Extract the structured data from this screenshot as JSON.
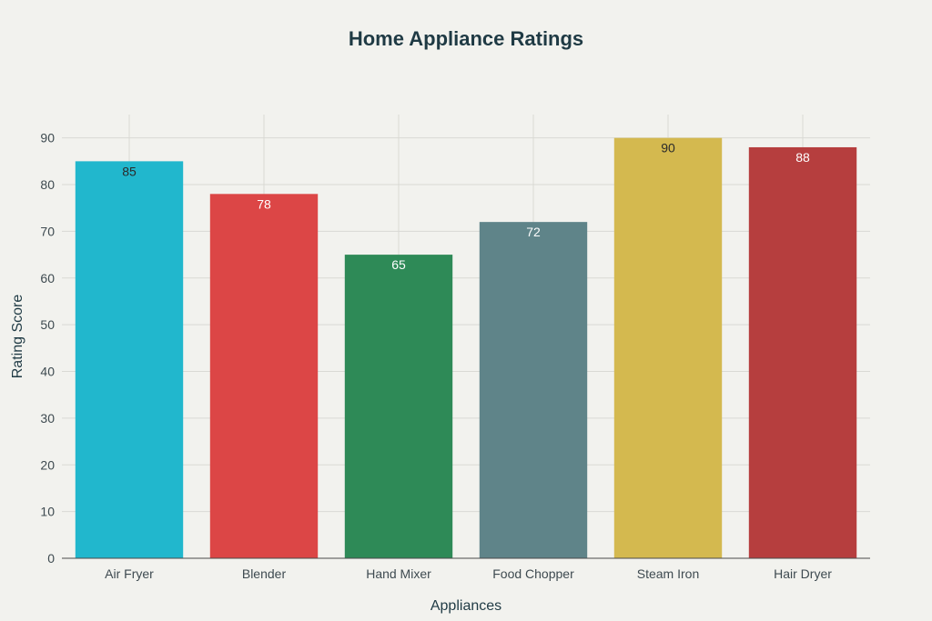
{
  "chart_data": {
    "type": "bar",
    "title": "Home Appliance Ratings",
    "xlabel": "Appliances",
    "ylabel": "Rating Score",
    "categories": [
      "Air Fryer",
      "Blender",
      "Hand Mixer",
      "Food Chopper",
      "Steam Iron",
      "Hair Dryer"
    ],
    "values": [
      85,
      78,
      65,
      72,
      90,
      88
    ],
    "data_labels": [
      "85",
      "78",
      "65",
      "72",
      "90",
      "88"
    ],
    "colors": [
      "#21b7cd",
      "#dc4646",
      "#2e8a57",
      "#5f8489",
      "#d4b94f",
      "#b63e3e"
    ],
    "label_colors": [
      "#2b2b2b",
      "#ffffff",
      "#ffffff",
      "#ffffff",
      "#2b2b2b",
      "#ffffff"
    ],
    "ylim": [
      0,
      95
    ],
    "yticks": [
      0,
      10,
      20,
      30,
      40,
      50,
      60,
      70,
      80,
      90
    ],
    "ytick_labels": [
      "0",
      "10",
      "20",
      "30",
      "40",
      "50",
      "60",
      "70",
      "80",
      "90"
    ],
    "grid": true,
    "legend": "none",
    "background": "#f2f2ee"
  }
}
